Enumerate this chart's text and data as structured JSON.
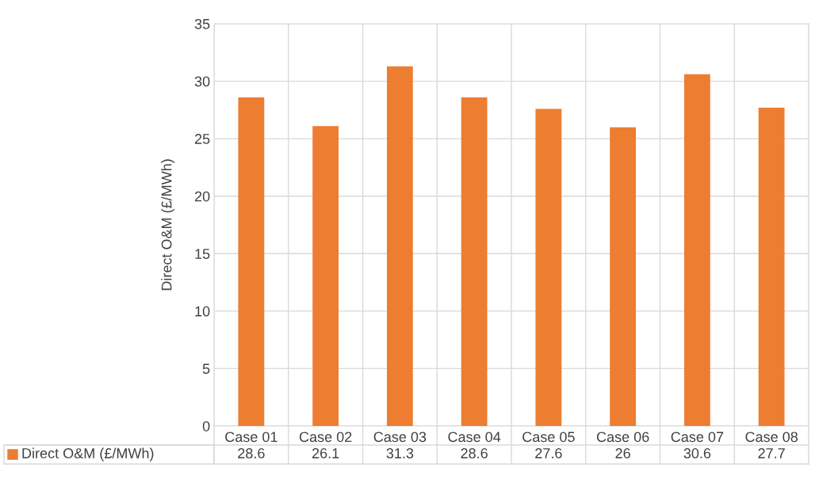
{
  "chart_data": {
    "type": "bar",
    "ylabel": "Direct O&M (£/MWh)",
    "categories": [
      "Case 01",
      "Case 02",
      "Case 03",
      "Case 04",
      "Case 05",
      "Case 06",
      "Case 07",
      "Case 08"
    ],
    "series": [
      {
        "name": "Direct O&M (£/MWh)",
        "color": "#ed7d31",
        "values": [
          28.6,
          26.1,
          31.3,
          28.6,
          27.6,
          26,
          30.6,
          27.7
        ]
      }
    ],
    "ylim": [
      0,
      35
    ],
    "yticks": [
      0,
      5,
      10,
      15,
      20,
      25,
      30,
      35
    ],
    "grid": true,
    "data_labels": true,
    "legend": "bottom"
  }
}
